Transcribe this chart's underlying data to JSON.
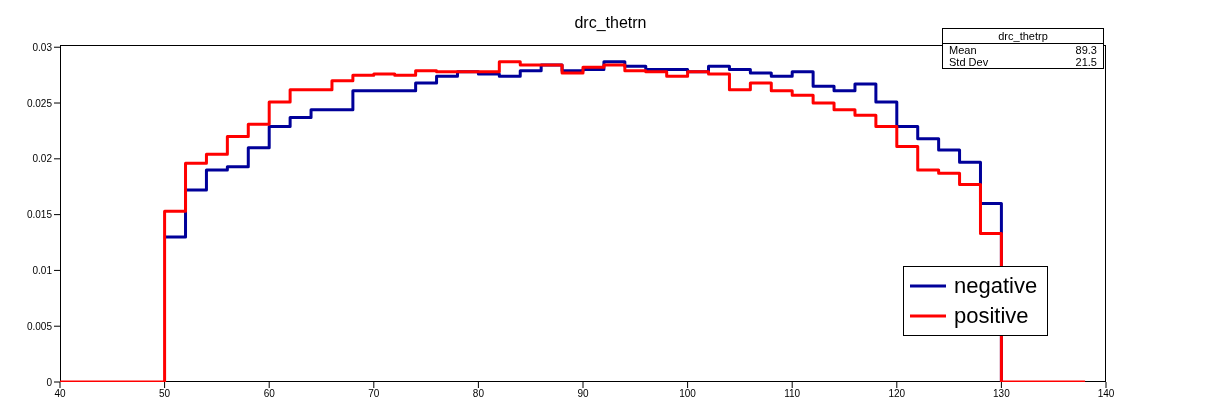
{
  "chart_data": {
    "type": "step",
    "title": "drc_thetrn",
    "x": [
      40,
      42,
      44,
      46,
      48,
      50,
      52,
      54,
      56,
      58,
      60,
      62,
      64,
      66,
      68,
      70,
      72,
      74,
      76,
      78,
      80,
      82,
      84,
      86,
      88,
      90,
      92,
      94,
      96,
      98,
      100,
      102,
      104,
      106,
      108,
      110,
      112,
      114,
      116,
      118,
      120,
      122,
      124,
      126,
      128,
      130,
      132,
      134,
      136,
      138
    ],
    "series": [
      {
        "name": "negative",
        "color": "#000099",
        "values": [
          null,
          null,
          null,
          null,
          null,
          0.013,
          0.0172,
          0.019,
          0.0193,
          0.021,
          0.0229,
          0.0237,
          0.0244,
          0.0244,
          0.0261,
          0.0261,
          0.0261,
          0.0268,
          0.0274,
          0.0278,
          0.0276,
          0.0274,
          0.0279,
          0.0284,
          0.0279,
          0.028,
          0.0287,
          0.0283,
          0.028,
          0.028,
          0.0278,
          0.0283,
          0.028,
          0.0277,
          0.0274,
          0.0278,
          0.0265,
          0.0261,
          0.0267,
          0.0251,
          0.0229,
          0.0218,
          0.0208,
          0.0197,
          0.016,
          0,
          null,
          null,
          null,
          null
        ]
      },
      {
        "name": "positive",
        "color": "#ff0000",
        "values": [
          0,
          0,
          0,
          0,
          0,
          0.0153,
          0.0196,
          0.0204,
          0.022,
          0.0231,
          0.0251,
          0.0262,
          0.0262,
          0.027,
          0.0275,
          0.0276,
          0.0275,
          0.0279,
          0.0278,
          0.0278,
          0.0278,
          0.0287,
          0.0284,
          0.0284,
          0.0277,
          0.0282,
          0.0284,
          0.0279,
          0.0278,
          0.0274,
          0.0278,
          0.0276,
          0.0262,
          0.0268,
          0.0261,
          0.0257,
          0.025,
          0.0244,
          0.0239,
          0.0229,
          0.0211,
          0.019,
          0.0187,
          0.0177,
          0.0133,
          0,
          0,
          0,
          0,
          0
        ]
      }
    ],
    "xlim": [
      40,
      140
    ],
    "xticks": [
      40,
      50,
      60,
      70,
      80,
      90,
      100,
      110,
      120,
      130,
      140
    ],
    "ylim": [
      0,
      0.0302
    ],
    "yticks": [
      0,
      0.005,
      0.01,
      0.015,
      0.02,
      0.025,
      0.03
    ],
    "legend": "bottom right",
    "grid": false,
    "annotations": [
      "drc_thetrp",
      "Mean 89.3",
      "Std Dev 21.5"
    ]
  }
}
